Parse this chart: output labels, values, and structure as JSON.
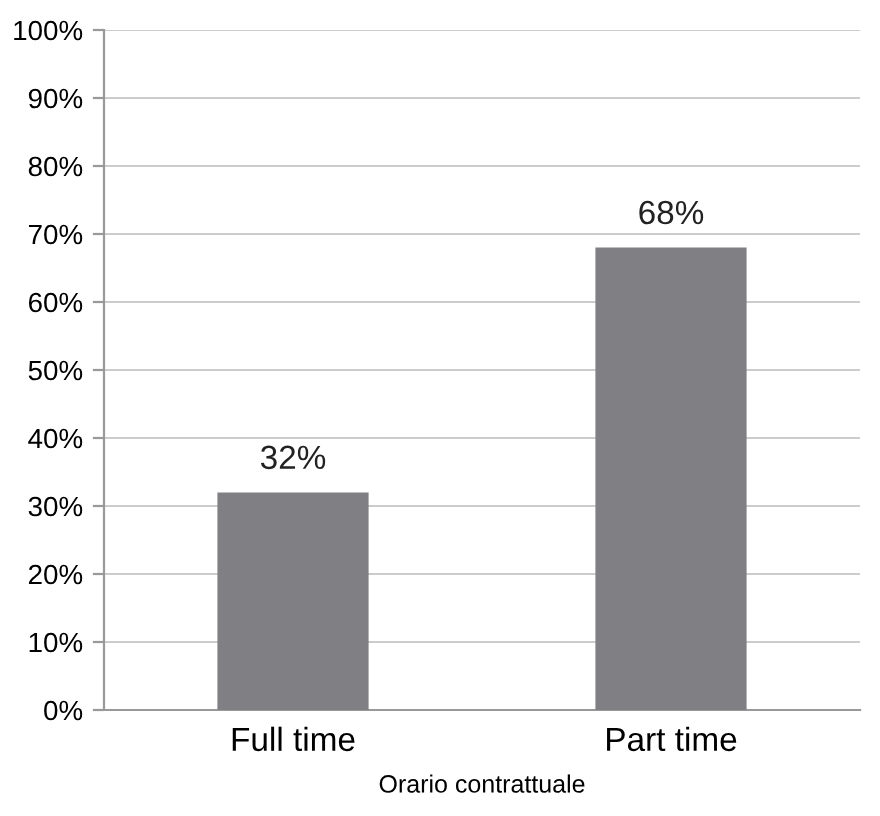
{
  "chart_data": {
    "type": "bar",
    "xlabel": "Orario contrattuale",
    "categories": [
      "Full time",
      "Part time"
    ],
    "values": [
      32,
      68
    ],
    "color": "#808084",
    "ylim": [
      0,
      100
    ],
    "yticks": [
      {
        "value": 0,
        "label": "0%"
      },
      {
        "value": 10,
        "label": "10%"
      },
      {
        "value": 20,
        "label": "20%"
      },
      {
        "value": 30,
        "label": "30%"
      },
      {
        "value": 40,
        "label": "40%"
      },
      {
        "value": 50,
        "label": "50%"
      },
      {
        "value": 60,
        "label": "60%"
      },
      {
        "value": 70,
        "label": "70%"
      },
      {
        "value": 80,
        "label": "80%"
      },
      {
        "value": 90,
        "label": "90%"
      },
      {
        "value": 100,
        "label": "100%"
      }
    ],
    "value_labels": [
      "32%",
      "68%"
    ],
    "grid": "y"
  }
}
